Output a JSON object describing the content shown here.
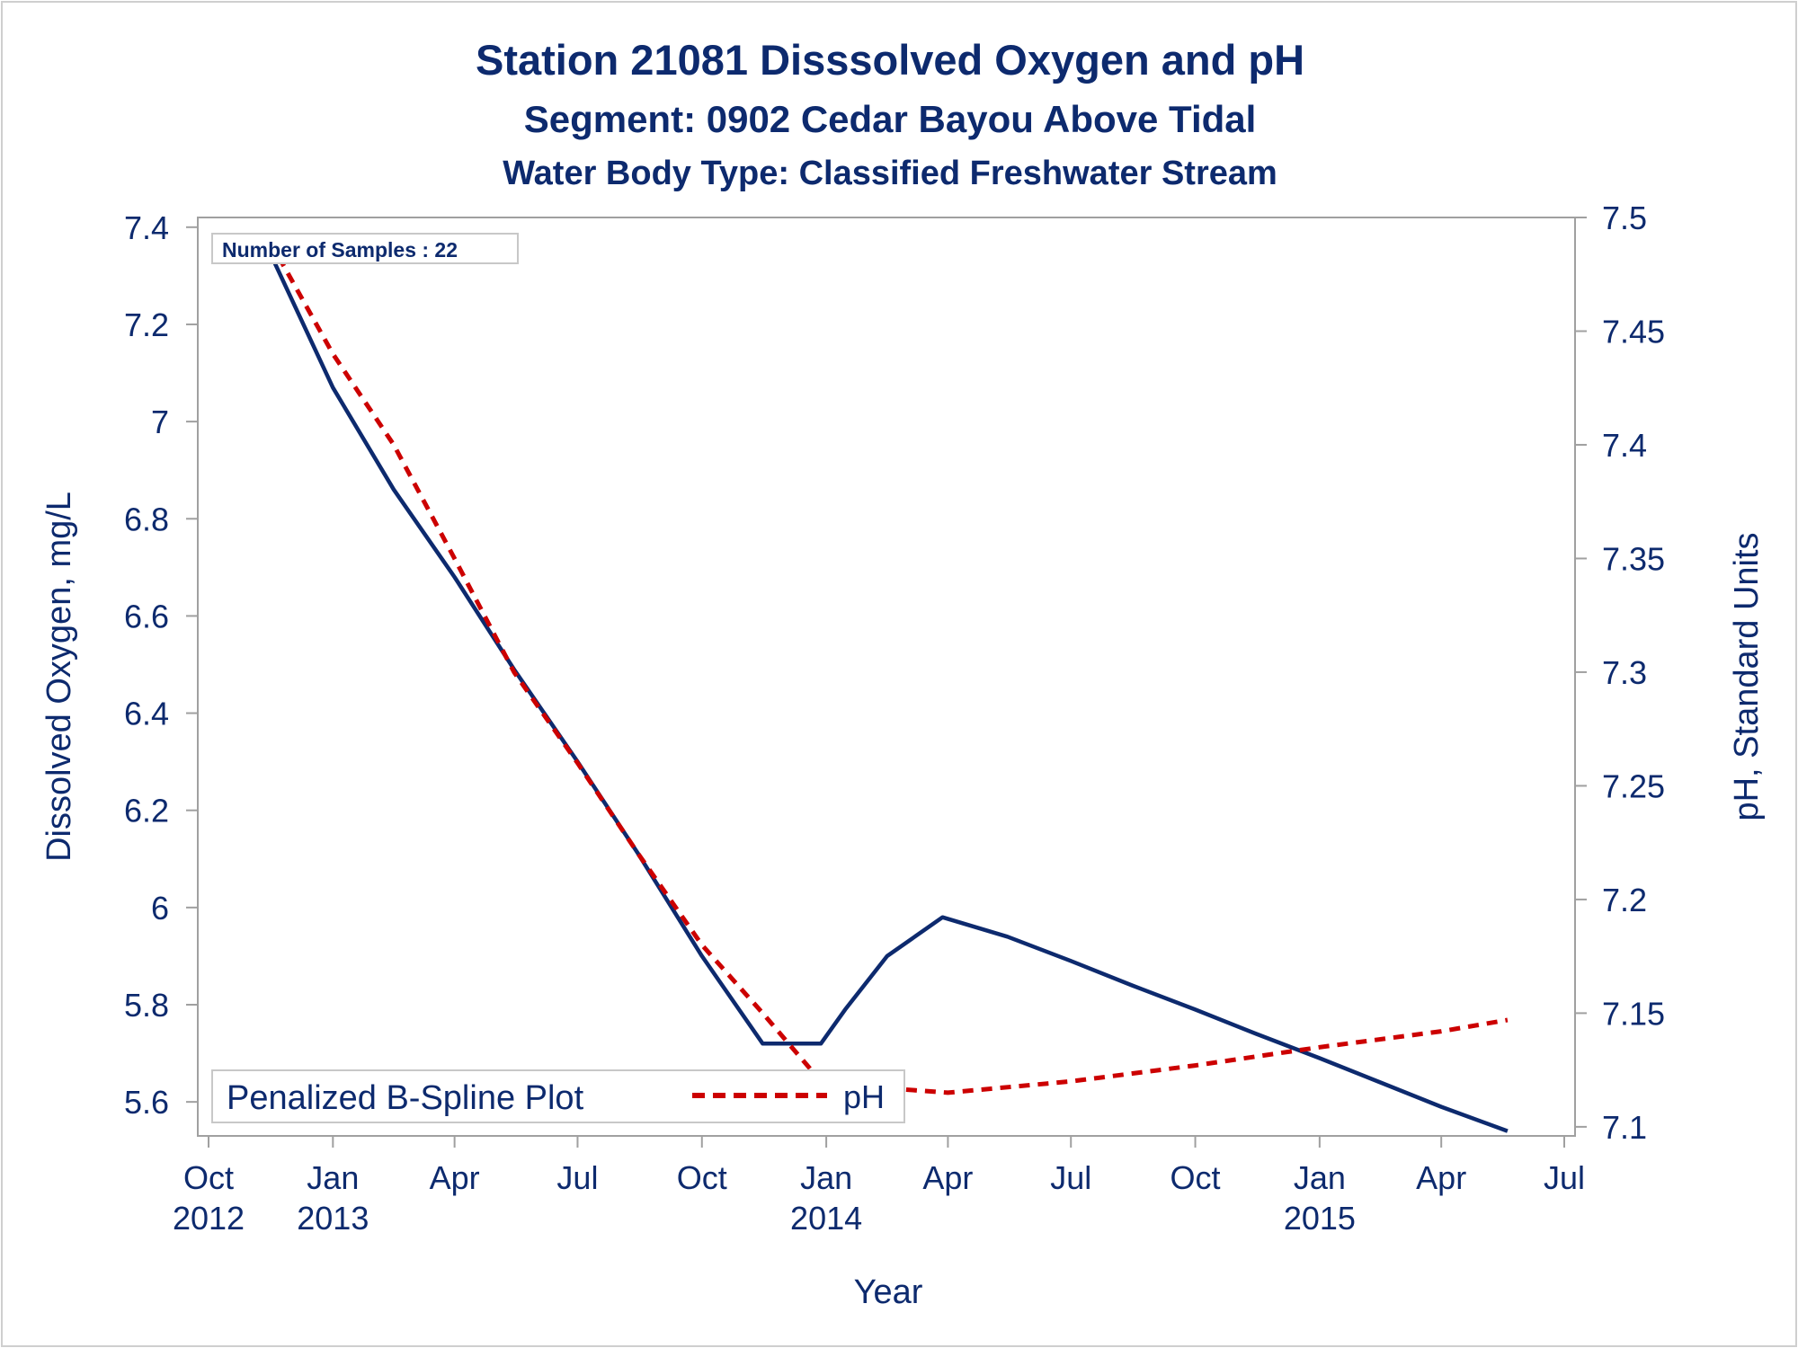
{
  "chart_data": {
    "type": "line",
    "title": "Station 21081   Disssolved Oxygen and pH",
    "subtitle": "Segment: 0902  Cedar Bayou Above Tidal",
    "subtitle2": "Water Body Type: Classified Freshwater Stream",
    "annotation": "Number of Samples : 22",
    "xlabel": "Year",
    "ylabel": "Dissolved Oxygen, mg/L",
    "y2label": "pH, Standard Units",
    "xlim": [
      "2012-10-01",
      "2015-07-01"
    ],
    "ylim": [
      5.53,
      7.42
    ],
    "y2lim": [
      7.096,
      7.5
    ],
    "x_ticks": [
      {
        "date": "2012-10-01",
        "label": "Oct",
        "year": "2012"
      },
      {
        "date": "2013-01-01",
        "label": "Jan",
        "year": "2013"
      },
      {
        "date": "2013-04-01",
        "label": "Apr",
        "year": ""
      },
      {
        "date": "2013-07-01",
        "label": "Jul",
        "year": ""
      },
      {
        "date": "2013-10-01",
        "label": "Oct",
        "year": ""
      },
      {
        "date": "2014-01-01",
        "label": "Jan",
        "year": "2014"
      },
      {
        "date": "2014-04-01",
        "label": "Apr",
        "year": ""
      },
      {
        "date": "2014-07-01",
        "label": "Jul",
        "year": ""
      },
      {
        "date": "2014-10-01",
        "label": "Oct",
        "year": ""
      },
      {
        "date": "2015-01-01",
        "label": "Jan",
        "year": "2015"
      },
      {
        "date": "2015-04-01",
        "label": "Apr",
        "year": ""
      },
      {
        "date": "2015-07-01",
        "label": "Jul",
        "year": ""
      }
    ],
    "y_ticks": [
      {
        "value": 5.6,
        "label": "5.6"
      },
      {
        "value": 5.8,
        "label": "5.8"
      },
      {
        "value": 6.0,
        "label": "6"
      },
      {
        "value": 6.2,
        "label": "6.2"
      },
      {
        "value": 6.4,
        "label": "6.4"
      },
      {
        "value": 6.6,
        "label": "6.6"
      },
      {
        "value": 6.8,
        "label": "6.8"
      },
      {
        "value": 7.0,
        "label": "7"
      },
      {
        "value": 7.2,
        "label": "7.2"
      },
      {
        "value": 7.4,
        "label": "7.4"
      }
    ],
    "y2_ticks": [
      {
        "value": 7.1,
        "label": "7.1"
      },
      {
        "value": 7.15,
        "label": "7.15"
      },
      {
        "value": 7.2,
        "label": "7.2"
      },
      {
        "value": 7.25,
        "label": "7.25"
      },
      {
        "value": 7.3,
        "label": "7.3"
      },
      {
        "value": 7.35,
        "label": "7.35"
      },
      {
        "value": 7.4,
        "label": "7.4"
      },
      {
        "value": 7.45,
        "label": "7.45"
      },
      {
        "value": 7.5,
        "label": "7.5"
      }
    ],
    "legend": {
      "title": "Penalized B-Spline Plot",
      "placement": "bottom-left"
    },
    "grid": false,
    "series": [
      {
        "name": "",
        "axis": "left",
        "color": "#0d2a6e",
        "style": "solid",
        "points": [
          {
            "x": "2012-11-15",
            "y": 7.35
          },
          {
            "x": "2013-01-01",
            "y": 7.07
          },
          {
            "x": "2013-02-15",
            "y": 6.86
          },
          {
            "x": "2013-04-01",
            "y": 6.68
          },
          {
            "x": "2013-05-15",
            "y": 6.49
          },
          {
            "x": "2013-07-01",
            "y": 6.3
          },
          {
            "x": "2013-08-15",
            "y": 6.11
          },
          {
            "x": "2013-10-01",
            "y": 5.9
          },
          {
            "x": "2013-11-15",
            "y": 5.72
          },
          {
            "x": "2013-12-28",
            "y": 5.72
          },
          {
            "x": "2014-01-15",
            "y": 5.79
          },
          {
            "x": "2014-02-15",
            "y": 5.9
          },
          {
            "x": "2014-03-28",
            "y": 5.98
          },
          {
            "x": "2014-05-15",
            "y": 5.94
          },
          {
            "x": "2014-07-01",
            "y": 5.89
          },
          {
            "x": "2014-08-15",
            "y": 5.84
          },
          {
            "x": "2014-10-01",
            "y": 5.79
          },
          {
            "x": "2014-11-15",
            "y": 5.74
          },
          {
            "x": "2015-01-01",
            "y": 5.69
          },
          {
            "x": "2015-02-15",
            "y": 5.64
          },
          {
            "x": "2015-04-01",
            "y": 5.59
          },
          {
            "x": "2015-05-20",
            "y": 5.54
          }
        ]
      },
      {
        "name": "pH",
        "axis": "right",
        "color": "#cc0000",
        "style": "dashed",
        "points": [
          {
            "x": "2012-11-15",
            "y": 7.49
          },
          {
            "x": "2013-01-01",
            "y": 7.44
          },
          {
            "x": "2013-02-15",
            "y": 7.4
          },
          {
            "x": "2013-04-01",
            "y": 7.35
          },
          {
            "x": "2013-05-15",
            "y": 7.3
          },
          {
            "x": "2013-07-01",
            "y": 7.26
          },
          {
            "x": "2013-08-15",
            "y": 7.22
          },
          {
            "x": "2013-10-01",
            "y": 7.18
          },
          {
            "x": "2013-11-15",
            "y": 7.15
          },
          {
            "x": "2013-12-28",
            "y": 7.12
          },
          {
            "x": "2014-02-15",
            "y": 7.117
          },
          {
            "x": "2014-04-01",
            "y": 7.115
          },
          {
            "x": "2014-07-01",
            "y": 7.12
          },
          {
            "x": "2014-10-01",
            "y": 7.127
          },
          {
            "x": "2015-01-01",
            "y": 7.135
          },
          {
            "x": "2015-04-01",
            "y": 7.142
          },
          {
            "x": "2015-05-20",
            "y": 7.147
          }
        ]
      }
    ]
  }
}
